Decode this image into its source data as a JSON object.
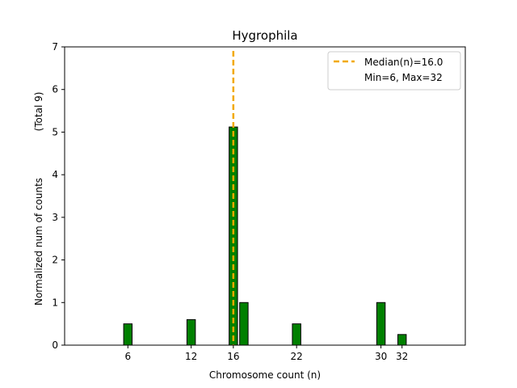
{
  "chart_data": {
    "type": "bar",
    "title": "Hygrophila",
    "xlabel": "Chromosome count (n)",
    "ylabel": "Normalized num of counts",
    "ylabel_note": "(Total 9)",
    "xlim": [
      0,
      38
    ],
    "ylim": [
      0,
      7
    ],
    "xticks": [
      6,
      12,
      16,
      22,
      30,
      32
    ],
    "yticks": [
      0,
      1,
      2,
      3,
      4,
      5,
      6,
      7
    ],
    "bars": [
      {
        "x": 6,
        "value": 0.5
      },
      {
        "x": 12,
        "value": 0.6
      },
      {
        "x": 16,
        "value": 5.12
      },
      {
        "x": 17,
        "value": 1.0
      },
      {
        "x": 22,
        "value": 0.5
      },
      {
        "x": 30,
        "value": 1.0
      },
      {
        "x": 32,
        "value": 0.25
      }
    ],
    "bar_width": 0.8,
    "bar_color": "#008000",
    "median_line": {
      "x": 16,
      "color": "#f2a900"
    },
    "legend": {
      "placement": "top-right",
      "entries": [
        "Median(n)=16.0",
        "Min=6, Max=32"
      ]
    },
    "grid": false
  }
}
